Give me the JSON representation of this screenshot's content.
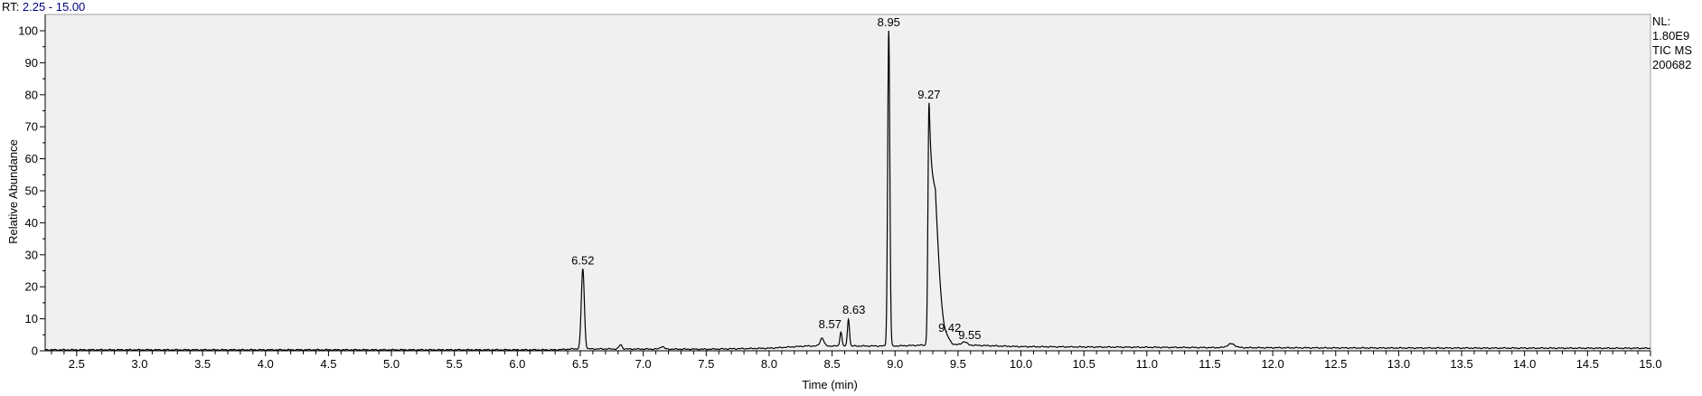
{
  "header": {
    "rt_label": "RT:",
    "rt_range": "2.25 - 15.00"
  },
  "nl_info": {
    "line1": "NL:",
    "line2": "1.80E9",
    "line3": "TIC  MS",
    "line4": "200682"
  },
  "chart_data": {
    "type": "line",
    "title": "",
    "xlabel": "Time (min)",
    "ylabel": "Relative Abundance",
    "xlim": [
      2.25,
      15.0
    ],
    "ylim": [
      0,
      100
    ],
    "x_ticks": [
      "2.5",
      "3.0",
      "3.5",
      "4.0",
      "4.5",
      "5.0",
      "5.5",
      "6.0",
      "6.5",
      "7.0",
      "7.5",
      "8.0",
      "8.5",
      "9.0",
      "9.5",
      "10.0",
      "10.5",
      "11.0",
      "11.5",
      "12.0",
      "12.5",
      "13.0",
      "13.5",
      "14.0",
      "14.5",
      "15.0"
    ],
    "y_ticks": [
      "0",
      "10",
      "20",
      "30",
      "40",
      "50",
      "60",
      "70",
      "80",
      "90",
      "100"
    ],
    "grid": false,
    "baseline": [
      [
        2.25,
        0.3
      ],
      [
        6.3,
        0.3
      ],
      [
        6.45,
        0.6
      ],
      [
        7.5,
        0.5
      ],
      [
        8.0,
        0.8
      ],
      [
        8.3,
        1.5
      ],
      [
        9.0,
        1.5
      ],
      [
        9.4,
        2.0
      ],
      [
        10.0,
        1.3
      ],
      [
        11.5,
        1.0
      ],
      [
        12.5,
        0.9
      ],
      [
        15.0,
        0.8
      ]
    ],
    "peaks": [
      {
        "rt": 6.52,
        "height": 25,
        "width": 0.012,
        "label": "6.52"
      },
      {
        "rt": 6.82,
        "height": 1.3,
        "width": 0.012
      },
      {
        "rt": 7.15,
        "height": 0.8,
        "width": 0.015
      },
      {
        "rt": 8.42,
        "height": 2.5,
        "width": 0.015
      },
      {
        "rt": 8.57,
        "height": 4.5,
        "width": 0.008,
        "label": "8.57"
      },
      {
        "rt": 8.63,
        "height": 8.5,
        "width": 0.008,
        "label": "8.63"
      },
      {
        "rt": 8.95,
        "height": 98.5,
        "width": 0.0085,
        "label": "8.95"
      },
      {
        "rt": 9.27,
        "height": 75.5,
        "width": 0.0085,
        "tail": 0.045,
        "label": "9.27"
      },
      {
        "rt": 9.42,
        "height": 1.0,
        "width": 0.02,
        "label": "9.42"
      },
      {
        "rt": 9.55,
        "height": 1.0,
        "width": 0.02,
        "label": "9.55"
      },
      {
        "rt": 11.67,
        "height": 1.2,
        "width": 0.03
      }
    ],
    "colors": {
      "trace": "#000000",
      "axis": "#000000",
      "plot_bg": "#f0f0f0",
      "text_blue": "#000080"
    }
  }
}
